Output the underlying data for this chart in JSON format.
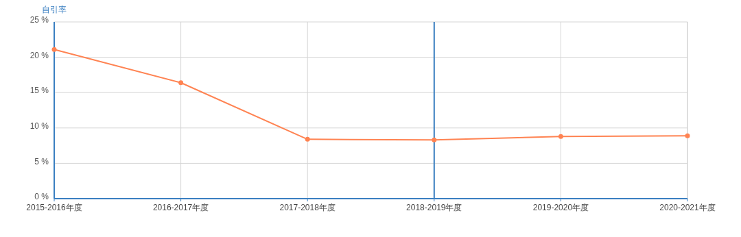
{
  "chart_data": {
    "type": "line",
    "ylabel": "自引率",
    "categories": [
      "2015-2016年度",
      "2016-2017年度",
      "2017-2018年度",
      "2018-2019年度",
      "2019-2020年度",
      "2020-2021年度"
    ],
    "series": [
      {
        "color": "#ff8352",
        "values": [
          21.1,
          16.4,
          8.4,
          8.3,
          8.8,
          8.9
        ]
      }
    ],
    "ylim": [
      0,
      25
    ],
    "yticks": [
      {
        "value": 0,
        "label": "0 %"
      },
      {
        "value": 5,
        "label": "5 %"
      },
      {
        "value": 10,
        "label": "10 %"
      },
      {
        "value": 15,
        "label": "15 %"
      },
      {
        "value": 20,
        "label": "20 %"
      },
      {
        "value": 25,
        "label": "25 %"
      }
    ],
    "ref_lines": [
      {
        "axis": "x",
        "value": "2018-2019年度",
        "color": "#3a7fc1"
      }
    ],
    "grid": true,
    "marker": "circle"
  }
}
